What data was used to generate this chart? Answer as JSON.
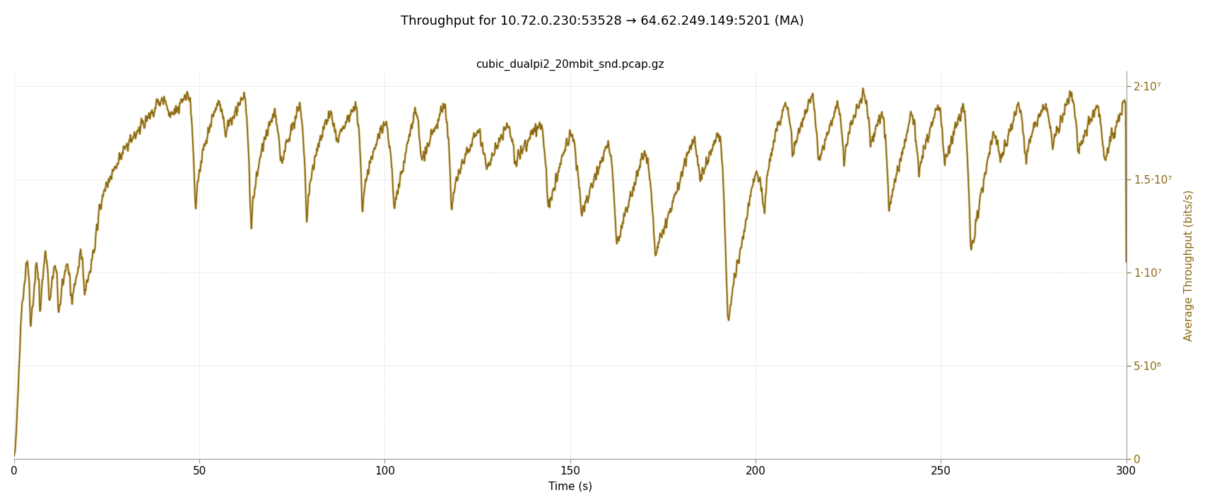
{
  "title": "Throughput for 10.72.0.230:53528 → 64.62.249.149:5201 (MA)",
  "subtitle": "cubic_dualpi2_20mbit_snd.pcap.gz",
  "xlabel": "Time (s)",
  "ylabel": "Average Throughput (bits/s)",
  "xmin": 0,
  "xmax": 300,
  "ymin": 0,
  "ymax": 20800000.0,
  "line_color": "#8B6914",
  "line_color2": "#c8b060",
  "background_color": "#ffffff",
  "grid_color": "#d0d0d0",
  "yticks": [
    0,
    5000000,
    10000000,
    15000000,
    20000000
  ],
  "ytick_labels": [
    "0",
    "5·10⁶",
    "1·10⁷",
    "1.5·10⁷",
    "2·10⁷"
  ],
  "xticks": [
    0,
    50,
    100,
    150,
    200,
    250,
    300
  ],
  "title_fontsize": 13,
  "subtitle_fontsize": 11,
  "axis_label_fontsize": 11,
  "tick_fontsize": 11
}
